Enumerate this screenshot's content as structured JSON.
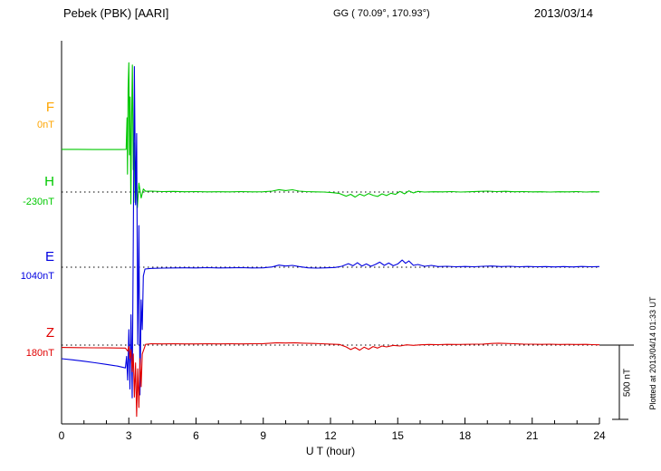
{
  "header": {
    "station": "Pebek (PBK)  [AARI]",
    "coords": "GG ( 70.09°, 170.93°)",
    "date": "2013/03/14"
  },
  "side_note": "Plotted at 2013/04/14 01:33 UT",
  "chart_data": {
    "type": "line",
    "title": "Pebek (PBK) [AARI] magnetogram",
    "xlabel": "U T (hour)",
    "xlim": [
      0,
      24
    ],
    "x_tick_labels": [
      "0",
      "3",
      "6",
      "9",
      "12",
      "15",
      "18",
      "21",
      "24"
    ],
    "grid": "dotted horizontal baselines per component",
    "legend_position": "left margin component labels",
    "scale_bar": {
      "label": "500 nT",
      "nT": 500
    },
    "series": [
      {
        "name": "F",
        "offset_label": "0nT",
        "color": "#FFA500",
        "points": []
      },
      {
        "name": "H",
        "offset_label": "-230nT",
        "color": "#00C800",
        "points": [
          [
            0,
            287
          ],
          [
            0.7,
            287
          ],
          [
            1.4,
            286
          ],
          [
            2.1,
            286
          ],
          [
            2.6,
            286
          ],
          [
            2.88,
            287
          ],
          [
            2.92,
            500
          ],
          [
            2.94,
            120
          ],
          [
            2.97,
            700
          ],
          [
            3.0,
            870
          ],
          [
            3.03,
            250
          ],
          [
            3.06,
            640
          ],
          [
            3.09,
            -80
          ],
          [
            3.12,
            420
          ],
          [
            3.16,
            855
          ],
          [
            3.2,
            150
          ],
          [
            3.24,
            330
          ],
          [
            3.28,
            -70
          ],
          [
            3.33,
            130
          ],
          [
            3.38,
            -105
          ],
          [
            3.45,
            60
          ],
          [
            3.55,
            -40
          ],
          [
            3.65,
            20
          ],
          [
            3.75,
            5
          ],
          [
            4,
            6
          ],
          [
            4.5,
            3
          ],
          [
            5,
            4
          ],
          [
            5.5,
            2
          ],
          [
            6,
            3
          ],
          [
            6.5,
            1
          ],
          [
            7,
            2
          ],
          [
            7.5,
            1
          ],
          [
            8,
            3
          ],
          [
            8.5,
            1
          ],
          [
            9,
            2
          ],
          [
            9.4,
            6
          ],
          [
            9.7,
            16
          ],
          [
            10,
            10
          ],
          [
            10.3,
            15
          ],
          [
            10.6,
            6
          ],
          [
            10.9,
            3
          ],
          [
            11.3,
            1
          ],
          [
            11.7,
            0
          ],
          [
            12.1,
            -4
          ],
          [
            12.4,
            -10
          ],
          [
            12.7,
            -28
          ],
          [
            12.9,
            -15
          ],
          [
            13.1,
            -34
          ],
          [
            13.3,
            -14
          ],
          [
            13.5,
            -26
          ],
          [
            13.7,
            -10
          ],
          [
            13.9,
            -22
          ],
          [
            14.1,
            -30
          ],
          [
            14.3,
            -12
          ],
          [
            14.5,
            -24
          ],
          [
            14.7,
            -8
          ],
          [
            14.9,
            -16
          ],
          [
            15.1,
            4
          ],
          [
            15.3,
            -12
          ],
          [
            15.5,
            8
          ],
          [
            15.7,
            -6
          ],
          [
            15.9,
            4
          ],
          [
            16.2,
            0
          ],
          [
            16.6,
            2
          ],
          [
            17,
            1
          ],
          [
            17.4,
            3
          ],
          [
            17.8,
            0
          ],
          [
            18.2,
            2
          ],
          [
            18.6,
            4
          ],
          [
            19,
            6
          ],
          [
            19.4,
            3
          ],
          [
            19.8,
            5
          ],
          [
            20.2,
            2
          ],
          [
            20.6,
            3
          ],
          [
            21,
            1
          ],
          [
            21.4,
            2
          ],
          [
            21.8,
            0
          ],
          [
            22.2,
            2
          ],
          [
            22.6,
            1
          ],
          [
            23,
            3
          ],
          [
            23.4,
            0
          ],
          [
            23.7,
            2
          ],
          [
            24,
            1
          ]
        ]
      },
      {
        "name": "E",
        "offset_label": "1040nT",
        "color": "#0000E0",
        "points": [
          [
            0,
            -616
          ],
          [
            0.5,
            -624
          ],
          [
            1,
            -633
          ],
          [
            1.5,
            -643
          ],
          [
            2,
            -654
          ],
          [
            2.5,
            -666
          ],
          [
            2.85,
            -678
          ],
          [
            2.9,
            -600
          ],
          [
            2.95,
            -760
          ],
          [
            3.0,
            -420
          ],
          [
            3.05,
            -820
          ],
          [
            3.1,
            -320
          ],
          [
            3.15,
            -880
          ],
          [
            3.2,
            180
          ],
          [
            3.25,
            1350
          ],
          [
            3.3,
            420
          ],
          [
            3.35,
            900
          ],
          [
            3.4,
            -520
          ],
          [
            3.45,
            280
          ],
          [
            3.5,
            -860
          ],
          [
            3.55,
            -220
          ],
          [
            3.6,
            -420
          ],
          [
            3.65,
            -60
          ],
          [
            3.72,
            -12
          ],
          [
            4,
            -8
          ],
          [
            4.5,
            -6
          ],
          [
            5,
            -5
          ],
          [
            5.5,
            -4
          ],
          [
            6,
            -5
          ],
          [
            6.5,
            -3
          ],
          [
            7,
            -5
          ],
          [
            7.5,
            -4
          ],
          [
            8,
            -3
          ],
          [
            8.5,
            -5
          ],
          [
            9,
            -4
          ],
          [
            9.4,
            2
          ],
          [
            9.7,
            14
          ],
          [
            10,
            8
          ],
          [
            10.3,
            12
          ],
          [
            10.6,
            4
          ],
          [
            11,
            -4
          ],
          [
            11.4,
            -6
          ],
          [
            11.8,
            -4
          ],
          [
            12.2,
            -2
          ],
          [
            12.5,
            6
          ],
          [
            12.8,
            24
          ],
          [
            13,
            10
          ],
          [
            13.2,
            30
          ],
          [
            13.4,
            8
          ],
          [
            13.6,
            22
          ],
          [
            13.8,
            6
          ],
          [
            14,
            18
          ],
          [
            14.2,
            34
          ],
          [
            14.4,
            12
          ],
          [
            14.6,
            28
          ],
          [
            14.8,
            10
          ],
          [
            15,
            22
          ],
          [
            15.2,
            48
          ],
          [
            15.35,
            26
          ],
          [
            15.5,
            42
          ],
          [
            15.7,
            12
          ],
          [
            15.9,
            18
          ],
          [
            16.2,
            6
          ],
          [
            16.5,
            12
          ],
          [
            16.8,
            4
          ],
          [
            17.2,
            6
          ],
          [
            17.6,
            3
          ],
          [
            18,
            5
          ],
          [
            18.4,
            3
          ],
          [
            18.8,
            6
          ],
          [
            19.2,
            8
          ],
          [
            19.6,
            4
          ],
          [
            20,
            6
          ],
          [
            20.4,
            3
          ],
          [
            20.8,
            5
          ],
          [
            21.2,
            3
          ],
          [
            21.6,
            4
          ],
          [
            22,
            2
          ],
          [
            22.4,
            4
          ],
          [
            22.8,
            2
          ],
          [
            23.2,
            5
          ],
          [
            23.6,
            3
          ],
          [
            24,
            4
          ]
        ]
      },
      {
        "name": "Z",
        "offset_label": "180nT",
        "color": "#E00000",
        "points": [
          [
            0,
            -16
          ],
          [
            0.7,
            -17
          ],
          [
            1.4,
            -18
          ],
          [
            2.1,
            -19
          ],
          [
            2.85,
            -20
          ],
          [
            2.95,
            -40
          ],
          [
            3.0,
            -10
          ],
          [
            3.05,
            -90
          ],
          [
            3.1,
            -30
          ],
          [
            3.15,
            -180
          ],
          [
            3.2,
            -60
          ],
          [
            3.25,
            -350
          ],
          [
            3.3,
            -120
          ],
          [
            3.35,
            -480
          ],
          [
            3.4,
            -160
          ],
          [
            3.45,
            -420
          ],
          [
            3.5,
            -90
          ],
          [
            3.55,
            -280
          ],
          [
            3.6,
            -60
          ],
          [
            3.68,
            -25
          ],
          [
            3.75,
            5
          ],
          [
            4,
            9
          ],
          [
            4.5,
            8
          ],
          [
            5,
            9
          ],
          [
            5.5,
            8
          ],
          [
            6,
            8
          ],
          [
            6.5,
            9
          ],
          [
            7,
            8
          ],
          [
            7.5,
            9
          ],
          [
            8,
            8
          ],
          [
            8.5,
            9
          ],
          [
            9,
            10
          ],
          [
            9.3,
            13
          ],
          [
            9.6,
            16
          ],
          [
            10,
            14
          ],
          [
            10.4,
            16
          ],
          [
            10.8,
            13
          ],
          [
            11.2,
            11
          ],
          [
            11.6,
            9
          ],
          [
            12,
            7
          ],
          [
            12.4,
            4
          ],
          [
            12.7,
            -12
          ],
          [
            12.9,
            -30
          ],
          [
            13.1,
            -16
          ],
          [
            13.3,
            -34
          ],
          [
            13.5,
            -14
          ],
          [
            13.7,
            -28
          ],
          [
            13.9,
            -10
          ],
          [
            14.1,
            -20
          ],
          [
            14.3,
            -6
          ],
          [
            14.5,
            -12
          ],
          [
            14.8,
            -2
          ],
          [
            15.1,
            -6
          ],
          [
            15.4,
            2
          ],
          [
            15.7,
            -2
          ],
          [
            16,
            2
          ],
          [
            16.4,
            4
          ],
          [
            16.8,
            3
          ],
          [
            17.2,
            5
          ],
          [
            17.6,
            4
          ],
          [
            18,
            5
          ],
          [
            18.4,
            6
          ],
          [
            18.8,
            7
          ],
          [
            19.2,
            11
          ],
          [
            19.5,
            13
          ],
          [
            19.8,
            11
          ],
          [
            20.2,
            9
          ],
          [
            20.6,
            7
          ],
          [
            21,
            6
          ],
          [
            21.4,
            5
          ],
          [
            21.8,
            6
          ],
          [
            22.2,
            4
          ],
          [
            22.6,
            5
          ],
          [
            23,
            4
          ],
          [
            23.4,
            5
          ],
          [
            23.7,
            3
          ],
          [
            24,
            2
          ]
        ]
      }
    ]
  }
}
